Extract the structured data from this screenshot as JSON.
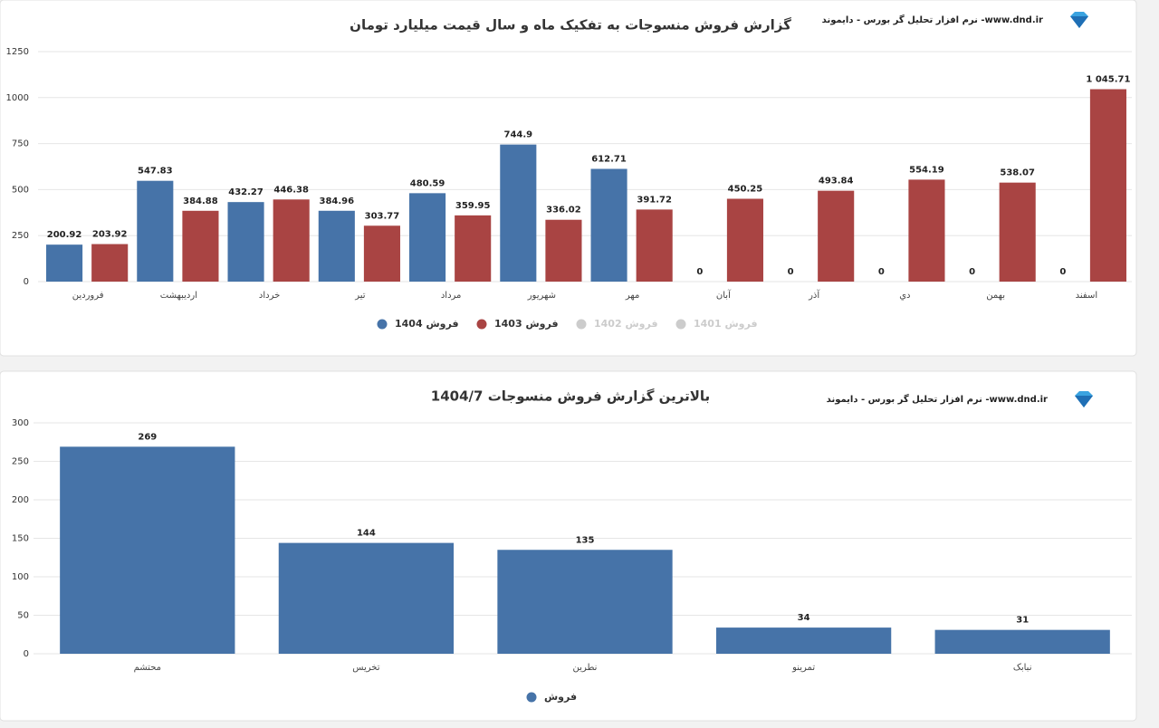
{
  "chart_data": [
    {
      "type": "bar",
      "title": "گزارش فروش منسوجات به تفکیک ماه و سال قیمت میلیارد تومان",
      "brand": "نرم افزار تحلیل گر بورس - دایموند -www.dnd.ir",
      "categories": [
        "فروردین",
        "اردیبهشت",
        "خرداد",
        "تیر",
        "مرداد",
        "شهریور",
        "مهر",
        "آبان",
        "آذر",
        "دي",
        "بهمن",
        "اسفند"
      ],
      "series": [
        {
          "name": "فروش 1404",
          "color": "#4673a8",
          "values": [
            200.92,
            547.83,
            432.27,
            384.96,
            480.59,
            744.9,
            612.71,
            0,
            0,
            0,
            0,
            0
          ]
        },
        {
          "name": "فروش 1403",
          "color": "#a94443",
          "values": [
            203.92,
            384.88,
            446.38,
            303.77,
            359.95,
            336.02,
            391.72,
            450.25,
            493.84,
            554.19,
            538.07,
            1045.71
          ],
          "value_labels": [
            "203.92",
            "384.88",
            "446.38",
            "303.77",
            "359.95",
            "336.02",
            "391.72",
            "450.25",
            "493.84",
            "554.19",
            "538.07",
            "1 045.71"
          ]
        },
        {
          "name": "فروش 1402",
          "color": "#cccccc",
          "hidden": true,
          "values": [
            null,
            null,
            null,
            null,
            null,
            null,
            null,
            null,
            null,
            null,
            null,
            null
          ]
        },
        {
          "name": "فروش 1401",
          "color": "#cccccc",
          "hidden": true,
          "values": [
            null,
            null,
            null,
            null,
            null,
            null,
            null,
            null,
            null,
            null,
            null,
            null
          ]
        }
      ],
      "ylim": [
        0,
        1250
      ],
      "yticks": [
        0,
        250,
        500,
        750,
        1000,
        1250
      ],
      "grid": true
    },
    {
      "type": "bar",
      "title": "بالاترین گزارش فروش منسوجات 1404/7",
      "brand": "نرم افزار تحلیل گر بورس - دایموند -www.dnd.ir",
      "categories": [
        "محتشم",
        "تخریس",
        "نطرین",
        "تمرینو",
        "نبابک"
      ],
      "series": [
        {
          "name": "فروش",
          "color": "#4673a8",
          "values": [
            269,
            144,
            135,
            34,
            31
          ]
        }
      ],
      "ylim": [
        0,
        300
      ],
      "yticks": [
        0,
        50,
        100,
        150,
        200,
        250,
        300
      ],
      "grid": true
    }
  ]
}
